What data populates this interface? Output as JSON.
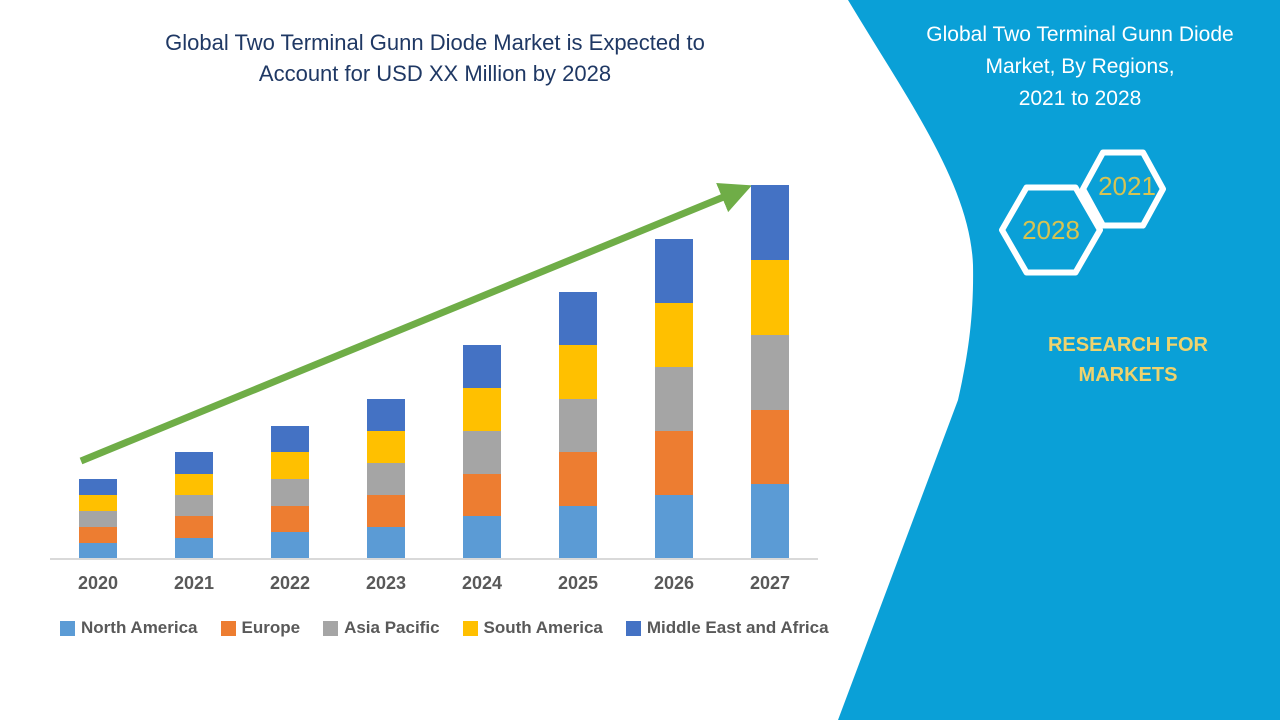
{
  "colors": {
    "panel_blue": "#0AA0D7",
    "title_navy": "#1F3864",
    "arrow_green": "#6FAD47",
    "axis_gray": "#D9D9D9",
    "label_gray": "#595959",
    "hex_year_yellow": "#D6C352",
    "brand_yellow": "#EFD36D",
    "panel_text_white": "#FFFFFF",
    "hex_outline_white": "#FFFFFF"
  },
  "main_title": {
    "line1": "Global Two Terminal Gunn Diode Market is Expected to",
    "line2": "Account for USD XX Million by 2028",
    "full": "Global Two Terminal Gunn Diode Market is Expected to Account for USD XX Million by 2028"
  },
  "chart_data": {
    "type": "bar",
    "stacked": true,
    "title": "Global Two Terminal Gunn Diode Market is Expected to Account for USD XX Million by 2028",
    "xlabel": "",
    "ylabel": "",
    "value_axis": "hidden (USD XX Million placeholder, no tick labels shown)",
    "values_unit": "relative index estimated from bar heights",
    "grid": false,
    "legend_position": "bottom",
    "trend_arrow": true,
    "categories": [
      "2020",
      "2021",
      "2022",
      "2023",
      "2024",
      "2025",
      "2026",
      "2027"
    ],
    "series": [
      {
        "name": "North America",
        "color": "#5B9BD5",
        "values": [
          3,
          4,
          5,
          6,
          8,
          10,
          12,
          14
        ]
      },
      {
        "name": "Europe",
        "color": "#ED7D31",
        "values": [
          3,
          4,
          5,
          6,
          8,
          10,
          12,
          14
        ]
      },
      {
        "name": "Asia Pacific",
        "color": "#A5A5A5",
        "values": [
          3,
          4,
          5,
          6,
          8,
          10,
          12,
          14
        ]
      },
      {
        "name": "South America",
        "color": "#FFC000",
        "values": [
          3,
          4,
          5,
          6,
          8,
          10,
          12,
          14
        ]
      },
      {
        "name": "Middle East and Africa",
        "color": "#4472C4",
        "values": [
          3,
          4,
          5,
          6,
          8,
          10,
          12,
          14
        ]
      }
    ],
    "stack_totals": [
      15,
      20,
      25,
      30,
      40,
      50,
      60,
      70
    ]
  },
  "side_panel": {
    "title_line1": "Global Two Terminal Gunn Diode",
    "title_line2": "Market, By Regions,",
    "title_line3": "2021 to 2028",
    "hexagons": [
      {
        "label": "2028"
      },
      {
        "label": "2021"
      }
    ],
    "brand_line1": "RESEARCH FOR",
    "brand_line2": "MARKETS"
  }
}
